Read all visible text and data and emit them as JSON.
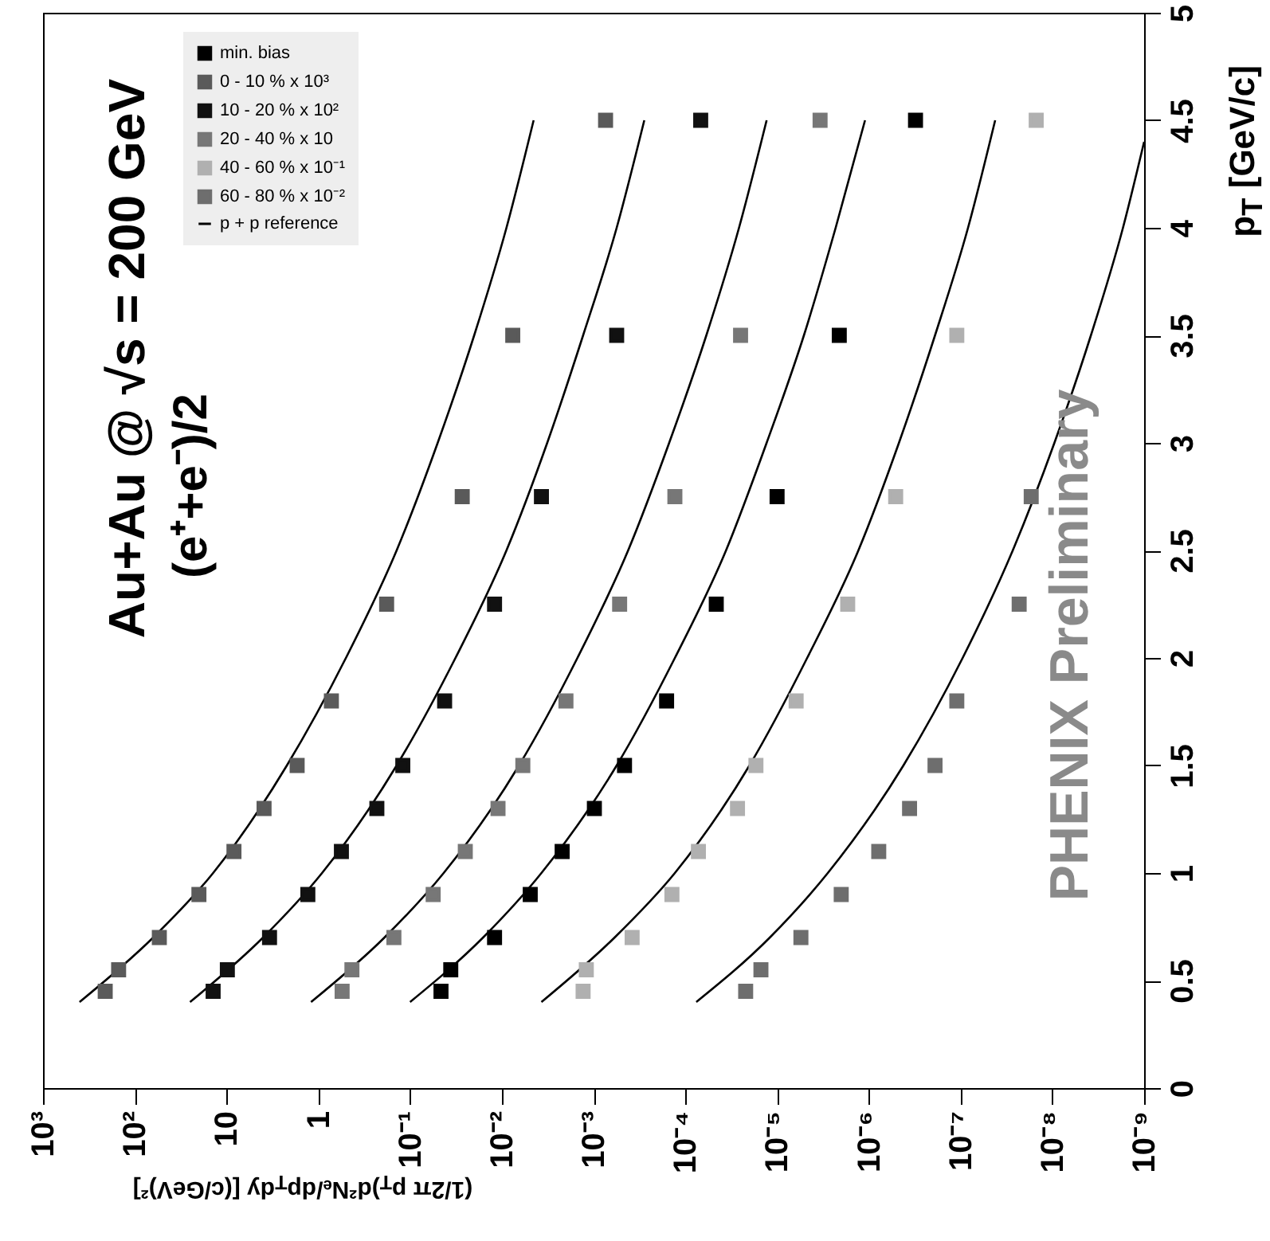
{
  "chart_data": {
    "type": "scatter",
    "annotations": [
      "Au+Au @ √s = 200 GeV",
      "(e⁺+e⁻)/2",
      "PHENIX Preliminary"
    ],
    "xlabel": "(1/2π p$_{T}$)d²Nₑ/dp$_{T}$dy [(c/GeV)²]",
    "ylabel": "p$_{T}$ [GeV/c]",
    "log": "x",
    "xlim": [
      1000,
      1e-09
    ],
    "xticks": [
      {
        "value": 1000,
        "label": "10³"
      },
      {
        "value": 100,
        "label": "10²"
      },
      10,
      1,
      {
        "value": 0.1,
        "label": "10⁻¹"
      },
      {
        "value": 0.01,
        "label": "10⁻²"
      },
      {
        "value": 0.001,
        "label": "10⁻³"
      },
      {
        "value": 0.0001,
        "label": "10⁻⁴"
      },
      {
        "value": 1e-05,
        "label": "10⁻⁵"
      },
      {
        "value": 1e-06,
        "label": "10⁻⁶"
      },
      {
        "value": 1e-07,
        "label": "10⁻⁷"
      },
      {
        "value": 1e-08,
        "label": "10⁻⁸"
      },
      {
        "value": 1e-09,
        "label": "10⁻⁹"
      }
    ],
    "ylim": [
      0,
      5
    ],
    "yticks": [
      0,
      0.5,
      1,
      1.5,
      2,
      2.5,
      3,
      3.5,
      4,
      4.5,
      5
    ],
    "legend": "top left",
    "marker": "square",
    "series": [
      {
        "name": "min. bias",
        "color": "#000000",
        "x": [
          0.046,
          0.036,
          0.012,
          0.0049,
          0.0022,
          0.00098,
          0.00046,
          0.00016,
          4.6e-05,
          1e-05,
          2.1e-06,
          3.1e-07
        ],
        "values": [
          0.45,
          0.55,
          0.7,
          0.9,
          1.1,
          1.3,
          1.5,
          1.8,
          2.25,
          2.75,
          3.5,
          4.5
        ]
      },
      {
        "name": "0 - 10 % x 10³",
        "color": "#5a5a5a",
        "x": [
          210,
          150,
          54,
          20,
          8.3,
          3.9,
          1.7,
          0.72,
          0.18,
          0.027,
          0.0076,
          0.00074
        ],
        "values": [
          0.45,
          0.55,
          0.7,
          0.9,
          1.1,
          1.3,
          1.5,
          1.8,
          2.25,
          2.75,
          3.5,
          4.5
        ]
      },
      {
        "name": "10 - 20 % x 10²",
        "color": "#111111",
        "x": [
          14,
          9.8,
          3.4,
          1.3,
          0.56,
          0.23,
          0.12,
          0.042,
          0.012,
          0.0037,
          0.00056,
          6.8e-05
        ],
        "values": [
          0.45,
          0.55,
          0.7,
          0.9,
          1.1,
          1.3,
          1.5,
          1.8,
          2.25,
          2.75,
          3.5,
          4.5
        ]
      },
      {
        "name": "20 - 40 % x 10",
        "color": "#777777",
        "x": [
          0.55,
          0.43,
          0.15,
          0.056,
          0.025,
          0.011,
          0.0059,
          0.002,
          0.00052,
          0.00013,
          2.5e-05,
          3.4e-06
        ],
        "values": [
          0.45,
          0.55,
          0.7,
          0.9,
          1.1,
          1.3,
          1.5,
          1.8,
          2.25,
          2.75,
          3.5,
          4.5
        ]
      },
      {
        "name": "40 - 60 % x 10⁻¹",
        "color": "#b0b0b0",
        "x": [
          0.0013,
          0.0012,
          0.00038,
          0.00014,
          7.2e-05,
          2.7e-05,
          1.7e-05,
          6.2e-06,
          1.7e-06,
          5.1e-07,
          1.1e-07,
          1.5e-08
        ],
        "values": [
          0.45,
          0.55,
          0.7,
          0.9,
          1.1,
          1.3,
          1.5,
          1.8,
          2.25,
          2.75,
          3.5,
          4.5
        ]
      },
      {
        "name": "60 - 80 % x 10⁻²",
        "color": "#6e6e6e",
        "x": [
          2.2e-05,
          1.5e-05,
          5.5e-06,
          2e-06,
          7.8e-07,
          3.6e-07,
          1.9e-07,
          1.1e-07,
          2.3e-08,
          1.7e-08
        ],
        "values": [
          0.45,
          0.55,
          0.7,
          0.9,
          1.1,
          1.3,
          1.5,
          1.8,
          2.25,
          2.75
        ]
      },
      {
        "name": "p + p reference",
        "type": "line",
        "marker": "none",
        "color": "#000000",
        "x": [
          400,
          63,
          14,
          2.2,
          0.5,
          0.14,
          0.05,
          0.02,
          0.0089,
          0.0045
        ],
        "values": [
          0.4,
          0.7,
          1.0,
          1.5,
          2.0,
          2.5,
          3.0,
          3.5,
          4.0,
          4.5
        ]
      },
      {
        "type": "line",
        "marker": "none",
        "color": "#000000",
        "x": [
          25,
          4.0,
          0.91,
          0.14,
          0.032,
          0.0089,
          0.0032,
          0.0013,
          0.00056,
          0.00028
        ],
        "values": [
          0.4,
          0.7,
          1.0,
          1.5,
          2.0,
          2.5,
          3.0,
          3.5,
          4.0,
          4.5
        ]
      },
      {
        "type": "line",
        "marker": "none",
        "color": "#000000",
        "x": [
          1.2,
          0.19,
          0.043,
          0.0065,
          0.0015,
          0.00042,
          0.00015,
          5.9e-05,
          2.6e-05,
          1.3e-05
        ],
        "values": [
          0.4,
          0.7,
          1.0,
          1.5,
          2.0,
          2.5,
          3.0,
          3.5,
          4.0,
          4.5
        ]
      },
      {
        "type": "line",
        "marker": "none",
        "color": "#000000",
        "x": [
          0.1,
          0.016,
          0.0037,
          0.00056,
          0.00013,
          3.6e-05,
          1.3e-05,
          5.1e-06,
          2.3e-06,
          1.1e-06
        ],
        "values": [
          0.4,
          0.7,
          1.0,
          1.5,
          2.0,
          2.5,
          3.0,
          3.5,
          4.0,
          4.5
        ]
      },
      {
        "type": "line",
        "marker": "none",
        "color": "#000000",
        "x": [
          0.0037,
          0.00059,
          0.00013,
          2e-05,
          4.7e-06,
          1.3e-06,
          4.7e-07,
          1.9e-07,
          8.3e-08,
          4.2e-08
        ],
        "values": [
          0.4,
          0.7,
          1.0,
          1.5,
          2.0,
          2.5,
          3.0,
          3.5,
          4.0,
          4.5
        ]
      },
      {
        "type": "line",
        "marker": "none",
        "color": "#000000",
        "x": [
          7.6e-05,
          1.2e-05,
          2.8e-06,
          4.2e-07,
          9.5e-08,
          2.7e-08,
          9.5e-09,
          3.8e-09,
          1.7e-09,
          1e-09
        ],
        "values": [
          0.4,
          0.7,
          1.0,
          1.5,
          2.0,
          2.5,
          3.0,
          3.5,
          4.0,
          4.4
        ]
      }
    ]
  }
}
